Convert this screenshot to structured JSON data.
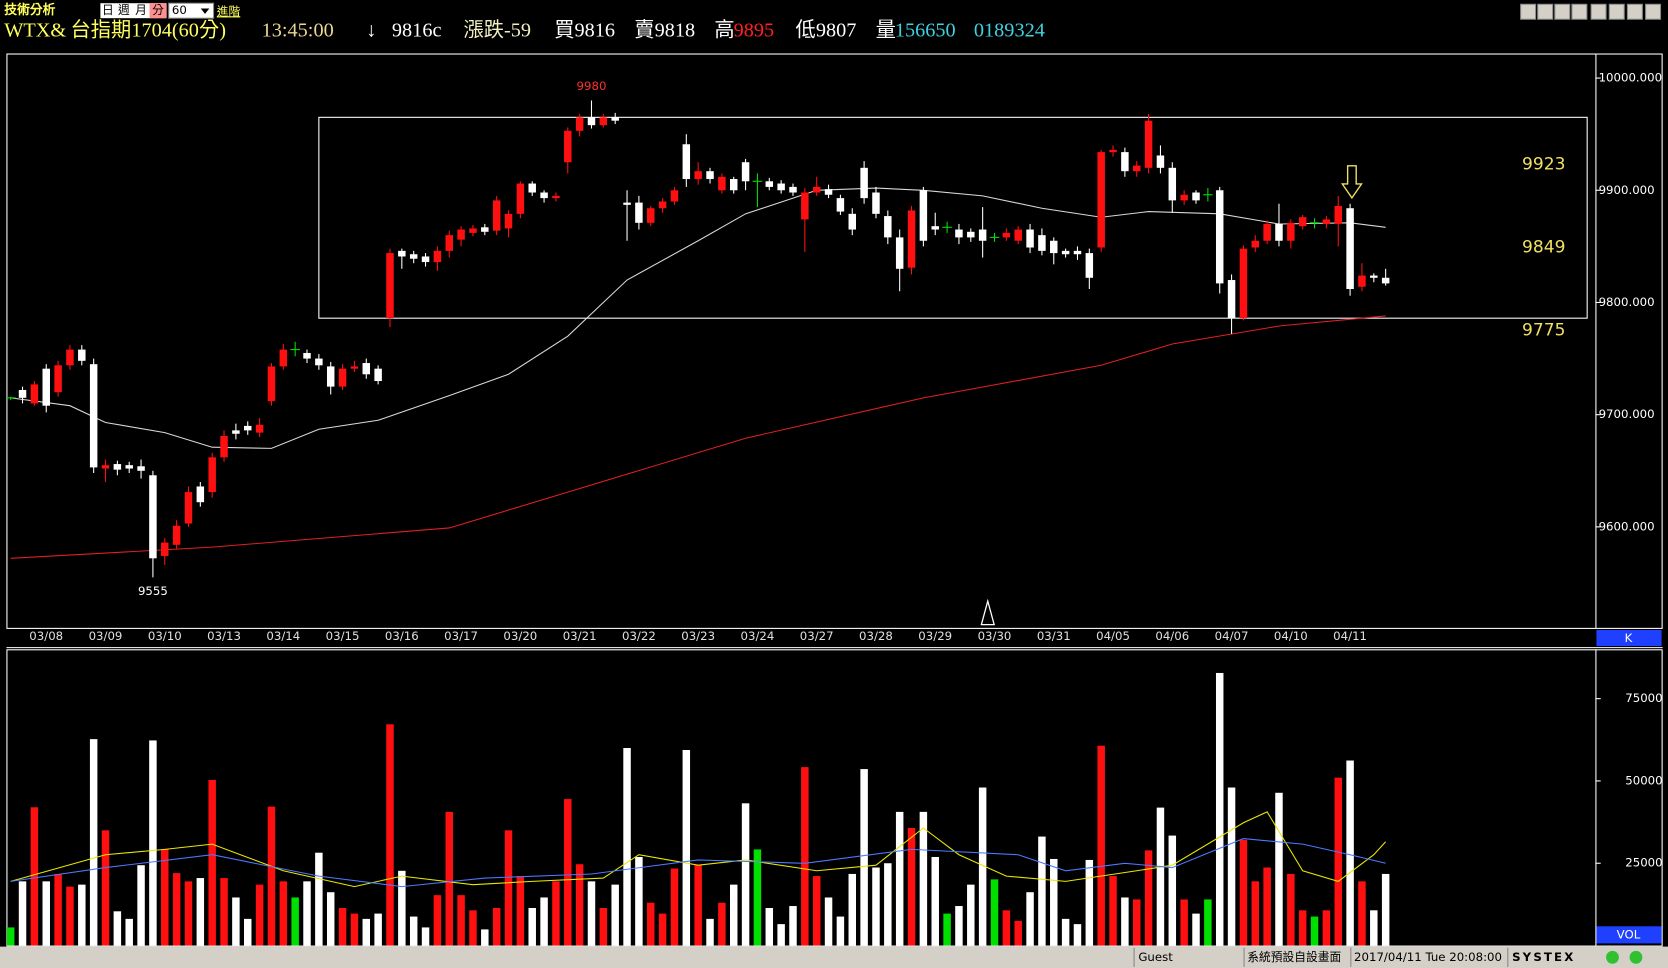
{
  "header": {
    "title": "技術分析",
    "tabs": [
      "日",
      "週",
      "月",
      "分"
    ],
    "period": "60",
    "advanced": "進階",
    "symbol": "WTX&",
    "contract": "台指期1704(60分)",
    "time": "13:45:00",
    "arrow": "↓",
    "last": "9816c",
    "change": "漲跌-59",
    "bid": "買9816",
    "ask": "賣9818",
    "high_label": "高",
    "high": "9895",
    "low": "低9807",
    "volume_label": "量",
    "volume": "156650",
    "open_interest": "0189324"
  },
  "status": {
    "user": "Guest",
    "layout": "系統預設自設畫面",
    "datetime": "2017/04/11 Tue 20:08:00",
    "brand": "SYSTEX"
  },
  "chart_data": [
    {
      "type": "candlestick",
      "panel_label": "K",
      "categories": [
        null,
        null,
        null,
        "03/08",
        null,
        null,
        null,
        null,
        "03/09",
        null,
        null,
        null,
        null,
        "03/10",
        null,
        null,
        null,
        null,
        "03/13",
        null,
        null,
        null,
        null,
        "03/14",
        null,
        null,
        null,
        null,
        "03/15",
        null,
        null,
        null,
        null,
        "03/16",
        null,
        null,
        null,
        null,
        "03/17",
        null,
        null,
        null,
        null,
        "03/20",
        null,
        null,
        null,
        null,
        "03/21",
        null,
        null,
        null,
        null,
        "03/22",
        null,
        null,
        null,
        null,
        "03/23",
        null,
        null,
        null,
        null,
        "03/24",
        null,
        null,
        null,
        null,
        "03/27",
        null,
        null,
        null,
        null,
        "03/28",
        null,
        null,
        null,
        null,
        "03/29",
        null,
        null,
        null,
        null,
        "03/30",
        null,
        null,
        null,
        null,
        "03/31",
        null,
        null,
        null,
        null,
        "04/05",
        null,
        null,
        null,
        null,
        "04/06",
        null,
        null,
        null,
        null,
        "04/07",
        null,
        null,
        null,
        null,
        "04/10",
        null,
        null,
        null,
        null,
        "04/11",
        null,
        null,
        null
      ],
      "open": [
        9715,
        9722,
        9710,
        9741,
        9720,
        9744,
        9758,
        9745,
        9652,
        9656,
        9655,
        9654,
        9646,
        9574,
        9584,
        9603,
        9636,
        9631,
        9662,
        9686,
        9690,
        9684,
        9712,
        9743,
        9758,
        9755,
        9750,
        9743,
        9725,
        9741,
        9746,
        9741,
        9786,
        9846,
        9843,
        9841,
        9836,
        9846,
        9856,
        9862,
        9867,
        9864,
        9866,
        9879,
        9906,
        9898,
        9893,
        9925,
        9953,
        9965,
        9958,
        9965,
        9889,
        9889,
        9871,
        9884,
        9890,
        9941,
        9910,
        9917,
        9900,
        9910,
        9925,
        9908,
        9908,
        9906,
        9903,
        9874,
        9898,
        9901,
        9893,
        9879,
        9920,
        9898,
        9877,
        9858,
        9831,
        9900,
        9868,
        9867,
        9865,
        9863,
        9865,
        9858,
        9858,
        9855,
        9865,
        9860,
        9855,
        9846,
        9846,
        9844,
        9849,
        9934,
        9934,
        9917,
        9920,
        9931,
        9920,
        9891,
        9898,
        9896,
        9900,
        9820,
        9786,
        9849,
        9855,
        9870,
        9855,
        9868,
        9871,
        9870,
        9870,
        9884,
        9814,
        9824,
        9822
      ],
      "high": [
        9716,
        9725,
        9730,
        9745,
        9748,
        9762,
        9762,
        9750,
        9660,
        9659,
        9658,
        9660,
        9650,
        9590,
        9606,
        9636,
        9640,
        9666,
        9686,
        9692,
        9694,
        9697,
        9746,
        9763,
        9765,
        9758,
        9754,
        9747,
        9745,
        9748,
        9750,
        9744,
        9848,
        9848,
        9846,
        9844,
        9850,
        9864,
        9868,
        9869,
        9870,
        9895,
        9882,
        9908,
        9908,
        9900,
        9898,
        9956,
        9968,
        9980,
        9968,
        9969,
        9900,
        9895,
        9886,
        9893,
        9903,
        9950,
        9925,
        9920,
        9915,
        9912,
        9928,
        9915,
        9911,
        9909,
        9906,
        9902,
        9912,
        9905,
        9896,
        9884,
        9926,
        9903,
        9882,
        9865,
        9886,
        9903,
        9880,
        9872,
        9870,
        9866,
        9885,
        9862,
        9866,
        9868,
        9870,
        9866,
        9858,
        9848,
        9850,
        9848,
        9936,
        9940,
        9938,
        9926,
        9968,
        9940,
        9925,
        9900,
        9900,
        9902,
        9903,
        9825,
        9851,
        9860,
        9873,
        9888,
        9874,
        9878,
        9875,
        9877,
        9895,
        9888,
        9835,
        9826,
        9830
      ],
      "low": [
        9713,
        9710,
        9708,
        9702,
        9716,
        9740,
        9744,
        9648,
        9640,
        9646,
        9648,
        9643,
        9555,
        9566,
        9580,
        9600,
        9618,
        9626,
        9658,
        9678,
        9682,
        9680,
        9708,
        9740,
        9752,
        9746,
        9740,
        9718,
        9722,
        9738,
        9732,
        9727,
        9778,
        9830,
        9835,
        9832,
        9828,
        9840,
        9850,
        9859,
        9860,
        9860,
        9858,
        9875,
        9895,
        9889,
        9890,
        9915,
        9948,
        9955,
        9956,
        9959,
        9855,
        9865,
        9868,
        9880,
        9887,
        9903,
        9905,
        9906,
        9897,
        9897,
        9900,
        9885,
        9900,
        9897,
        9895,
        9845,
        9895,
        9893,
        9878,
        9860,
        9888,
        9875,
        9852,
        9810,
        9825,
        9850,
        9860,
        9862,
        9852,
        9854,
        9840,
        9854,
        9855,
        9852,
        9844,
        9842,
        9834,
        9840,
        9838,
        9812,
        9845,
        9930,
        9912,
        9912,
        9915,
        9915,
        9880,
        9887,
        9888,
        9890,
        9808,
        9772,
        9784,
        9845,
        9852,
        9850,
        9848,
        9865,
        9866,
        9866,
        9850,
        9806,
        9810,
        9818,
        9815
      ],
      "close": [
        9715,
        9715,
        9727,
        9708,
        9744,
        9758,
        9748,
        9653,
        9655,
        9651,
        9652,
        9650,
        9572,
        9586,
        9601,
        9631,
        9622,
        9662,
        9681,
        9683,
        9686,
        9691,
        9743,
        9758,
        9758,
        9750,
        9744,
        9725,
        9741,
        9743,
        9736,
        9730,
        9844,
        9841,
        9839,
        9836,
        9846,
        9860,
        9865,
        9866,
        9863,
        9891,
        9879,
        9906,
        9898,
        9893,
        9895,
        9953,
        9965,
        9958,
        9965,
        9962,
        9887,
        9871,
        9884,
        9890,
        9900,
        9910,
        9917,
        9910,
        9912,
        9900,
        9908,
        9908,
        9903,
        9900,
        9898,
        9898,
        9903,
        9896,
        9881,
        9865,
        9893,
        9879,
        9858,
        9830,
        9882,
        9855,
        9865,
        9867,
        9858,
        9858,
        9855,
        9858,
        9862,
        9865,
        9849,
        9846,
        9844,
        9843,
        9843,
        9822,
        9934,
        9936,
        9917,
        9922,
        9962,
        9920,
        9891,
        9896,
        9891,
        9896,
        9817,
        9786,
        9848,
        9855,
        9870,
        9855,
        9871,
        9876,
        9871,
        9874,
        9886,
        9812,
        9824,
        9822,
        9817
      ],
      "up_color": "#ff1010",
      "down_color": "#ffffff",
      "flat_color": "#00e000",
      "series": [
        {
          "color": "#d8d8d8",
          "x": [
            0,
            5,
            8,
            13,
            17,
            22,
            26,
            31,
            37,
            42,
            47,
            52,
            58,
            62,
            68,
            73,
            77,
            82,
            87,
            92,
            96,
            102,
            107,
            113,
            116
          ],
          "values": [
            9715,
            9708,
            9693,
            9684,
            9671,
            9670,
            9687,
            9695,
            9717,
            9736,
            9770,
            9820,
            9855,
            9879,
            9900,
            9902,
            9900,
            9895,
            9884,
            9876,
            9881,
            9879,
            9870,
            9871,
            9867
          ]
        },
        {
          "color": "#e02020",
          "x": [
            0,
            17,
            37,
            47,
            62,
            77,
            92,
            98,
            107,
            116
          ],
          "values": [
            9572,
            9582,
            9599,
            9631,
            9679,
            9715,
            9744,
            9763,
            9779,
            9788
          ]
        }
      ],
      "annotations": {
        "high": 9980,
        "low": 9555,
        "levels": [
          9923,
          9849,
          9775
        ],
        "level_color": "#f0e060"
      },
      "box": {
        "x": [
          26,
          133
        ],
        "y": [
          9786,
          9965
        ]
      },
      "ylim": [
        9510,
        10020
      ],
      "yticks": [
        {
          "value": 9600,
          "label": "9600.000"
        },
        {
          "value": 9700,
          "label": "9700.000"
        },
        {
          "value": 9800,
          "label": "9800.000"
        },
        {
          "value": 9900,
          "label": "9900.000"
        },
        {
          "value": 10000,
          "label": "10000.000"
        }
      ]
    },
    {
      "type": "bar",
      "panel_label": "VOL",
      "values": [
        5500,
        19500,
        42000,
        19500,
        21750,
        17900,
        18500,
        62700,
        35000,
        10400,
        8100,
        24400,
        62300,
        29200,
        22000,
        19500,
        20500,
        50300,
        20500,
        14600,
        8100,
        18500,
        42200,
        19500,
        14600,
        19500,
        28200,
        16200,
        11400,
        9700,
        8100,
        9700,
        67200,
        22700,
        8800,
        5500,
        15300,
        40600,
        15300,
        10700,
        4900,
        11400,
        35000,
        21100,
        11400,
        14600,
        19500,
        44500,
        24700,
        19500,
        11400,
        18500,
        60000,
        26900,
        13000,
        9700,
        23400,
        59400,
        24400,
        8100,
        13000,
        18500,
        43200,
        29200,
        11400,
        6500,
        12000,
        54200,
        21100,
        14600,
        8800,
        21750,
        53600,
        23700,
        25000,
        40600,
        35700,
        40600,
        26900,
        9700,
        12000,
        18500,
        48000,
        20100,
        10700,
        7500,
        16200,
        33100,
        26300,
        8100,
        6500,
        26000,
        60700,
        21100,
        14600,
        14000,
        28900,
        41900,
        33400,
        14000,
        9700,
        14000,
        82800,
        48000,
        32100,
        19500,
        23700,
        46400,
        21750,
        10700,
        8800,
        10700,
        51000,
        56200,
        19500,
        10700,
        21750
      ],
      "series": [
        {
          "color": "#e8e800",
          "x": [
            0,
            8,
            13,
            17,
            23,
            29,
            33,
            39,
            44,
            50,
            53,
            58,
            62,
            68,
            73,
            77,
            80,
            84,
            89,
            95,
            98,
            104,
            106,
            109,
            112,
            115,
            116
          ],
          "values": [
            19500,
            27600,
            29200,
            30800,
            22700,
            17900,
            21100,
            18500,
            19500,
            20500,
            27600,
            24400,
            26000,
            22700,
            24400,
            35700,
            27600,
            21100,
            19500,
            22700,
            24400,
            37300,
            40600,
            22700,
            19500,
            27600,
            31500
          ]
        },
        {
          "color": "#4a78ff",
          "x": [
            0,
            8,
            17,
            26,
            33,
            40,
            49,
            58,
            67,
            76,
            85,
            89,
            94,
            98,
            104,
            109,
            113,
            116
          ],
          "values": [
            19500,
            23700,
            27600,
            21100,
            17900,
            20500,
            21750,
            26000,
            25000,
            29200,
            27600,
            22700,
            25000,
            23700,
            32500,
            30800,
            27600,
            25000
          ]
        }
      ],
      "ylim": [
        0,
        90000
      ],
      "yticks": [
        25000,
        50000,
        75000
      ]
    }
  ]
}
